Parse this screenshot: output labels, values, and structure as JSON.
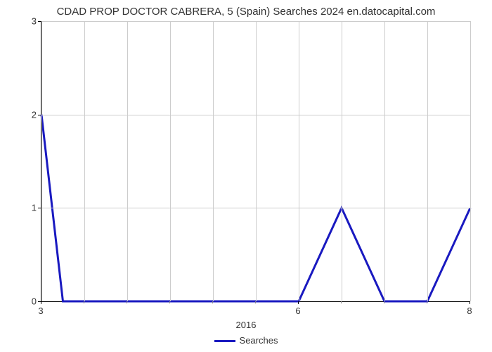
{
  "chart": {
    "type": "line",
    "title": "CDAD PROP DOCTOR CABRERA, 5 (Spain) Searches 2024 en.datocapital.com",
    "title_fontsize": 15,
    "title_color": "#333333",
    "x_axis_label": "2016",
    "x_axis_label_fontsize": 13,
    "background_color": "#ffffff",
    "plot_background": "#ffffff",
    "grid_color": "#cccccc",
    "axis_color": "#000000",
    "xlim": [
      3,
      8
    ],
    "ylim": [
      0,
      3
    ],
    "x_major_ticks": [
      3,
      6,
      8
    ],
    "x_minor_ticks": [
      3.5,
      4,
      4.5,
      5,
      5.5,
      6.5,
      7,
      7.5
    ],
    "y_ticks": [
      0,
      1,
      2,
      3
    ],
    "x_grid_positions": [
      3,
      3.5,
      4,
      4.5,
      5,
      5.5,
      6,
      6.5,
      7,
      7.5,
      8
    ],
    "x_tick_labels": {
      "3": "3",
      "6": "6",
      "8": "8"
    },
    "y_tick_labels": {
      "0": "0",
      "1": "1",
      "2": "2",
      "3": "3"
    },
    "series": {
      "name": "Searches",
      "color": "#1919c0",
      "line_width": 3,
      "points": [
        {
          "x": 3.0,
          "y": 2.0
        },
        {
          "x": 3.25,
          "y": 0.0
        },
        {
          "x": 6.0,
          "y": 0.0
        },
        {
          "x": 6.5,
          "y": 1.0
        },
        {
          "x": 7.0,
          "y": 0.0
        },
        {
          "x": 7.5,
          "y": 0.0
        },
        {
          "x": 8.0,
          "y": 1.0
        }
      ]
    },
    "legend": {
      "label": "Searches",
      "color": "#1919c0"
    }
  }
}
